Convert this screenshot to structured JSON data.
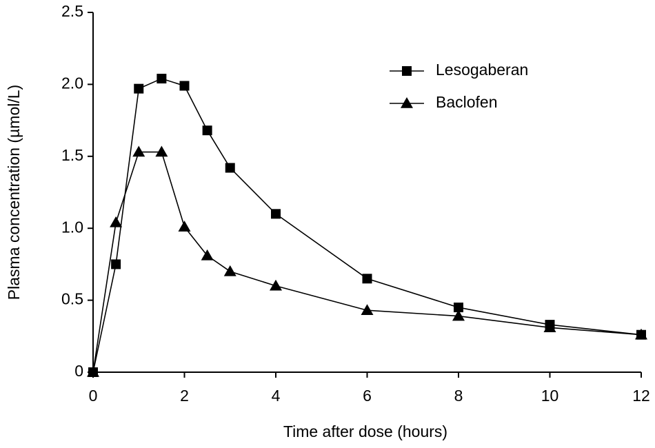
{
  "chart_data": {
    "type": "line",
    "xlabel": "Time after dose (hours)",
    "ylabel": "Plasma concentration (µmol/L)",
    "x": [
      0,
      0.5,
      1,
      1.5,
      2,
      2.5,
      3,
      4,
      6,
      8,
      10,
      12
    ],
    "series": [
      {
        "name": "Lesogaberan",
        "color": "#000000",
        "marker": "square",
        "values": [
          0,
          0.75,
          1.97,
          2.04,
          1.99,
          1.68,
          1.42,
          1.1,
          0.65,
          0.45,
          0.33,
          0.26
        ]
      },
      {
        "name": "Baclofen",
        "color": "#000000",
        "marker": "triangle",
        "values": [
          0,
          1.04,
          1.53,
          1.53,
          1.01,
          0.81,
          0.7,
          0.6,
          0.43,
          0.39,
          0.31,
          0.26
        ]
      }
    ],
    "xlim": [
      0,
      12
    ],
    "xticks": [
      0,
      2,
      4,
      6,
      8,
      10,
      12
    ],
    "ylim": [
      0,
      2.5
    ],
    "yticks": [
      0,
      0.5,
      {
        "value": 1,
        "label": "1.0"
      },
      1.5,
      {
        "value": 2,
        "label": "2.0"
      },
      2.5
    ],
    "grid": false,
    "legend": "upper right"
  }
}
